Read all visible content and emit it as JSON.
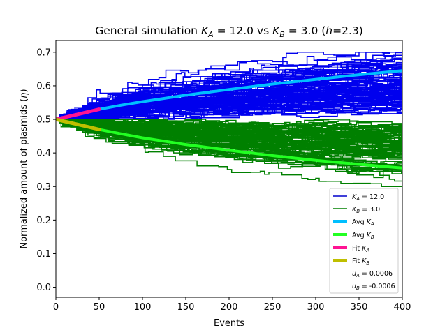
{
  "chart_data": {
    "type": "line",
    "title": {
      "prefix": "General simulation ",
      "ka_sym": "K",
      "ka_sub": "A",
      "ka_val": " = 12.0 vs ",
      "kb_sym": "K",
      "kb_sub": "B",
      "kb_val": " = 3.0 (",
      "h_sym": "h",
      "h_val": "=2.3)"
    },
    "xlabel": "Events",
    "ylabel": {
      "text": "Normalized amount of plasmids (",
      "sym": "η",
      "close": ")"
    },
    "xlim": [
      0,
      400
    ],
    "ylim": [
      -0.03,
      0.735
    ],
    "xticks": [
      "0",
      "50",
      "100",
      "150",
      "200",
      "250",
      "300",
      "350",
      "400"
    ],
    "yticks": [
      "0.0",
      "0.1",
      "0.2",
      "0.3",
      "0.4",
      "0.5",
      "0.6",
      "0.7"
    ],
    "grid": false,
    "legend_position": "lower-right",
    "simulations": {
      "A": {
        "color": "#0000ee",
        "start": 0.5,
        "upper": 0.7,
        "lower_bound": 0.5,
        "spread_max": 0.105
      },
      "B": {
        "color": "#008000",
        "start": 0.5,
        "upper": 0.5,
        "lower_bound": 0.3,
        "spread_max": 0.09
      }
    },
    "series": [
      {
        "id": "avg_a",
        "color": "#00bfff",
        "x": [
          0,
          25,
          50,
          75,
          100,
          150,
          200,
          250,
          300,
          350,
          400
        ],
        "y": [
          0.5,
          0.515,
          0.53,
          0.542,
          0.553,
          0.572,
          0.589,
          0.605,
          0.619,
          0.633,
          0.645
        ]
      },
      {
        "id": "avg_b",
        "color": "#22ff22",
        "x": [
          0,
          25,
          50,
          75,
          100,
          150,
          200,
          250,
          300,
          350,
          400
        ],
        "y": [
          0.5,
          0.485,
          0.47,
          0.457,
          0.445,
          0.425,
          0.408,
          0.392,
          0.378,
          0.366,
          0.355
        ]
      },
      {
        "id": "fit_a",
        "color": "#ff1493",
        "x": [
          0,
          10,
          20,
          30,
          40,
          50
        ],
        "y": [
          0.5,
          0.506,
          0.512,
          0.518,
          0.524,
          0.53
        ]
      },
      {
        "id": "fit_b",
        "color": "#bfbf00",
        "x": [
          0,
          10,
          20,
          30,
          40,
          50
        ],
        "y": [
          0.5,
          0.494,
          0.488,
          0.482,
          0.476,
          0.47
        ]
      }
    ],
    "legend": {
      "ka_line": {
        "sym": "K",
        "sub": "A",
        "val": " = 12.0",
        "color": "#0000cc"
      },
      "kb_line": {
        "sym": "K",
        "sub": "B",
        "val": " = 3.0",
        "color": "#008000"
      },
      "avg_a": {
        "prefix": "Avg ",
        "sym": "K",
        "sub": "A",
        "color": "#00bfff"
      },
      "avg_b": {
        "prefix": "Avg ",
        "sym": "K",
        "sub": "B",
        "color": "#22ff22"
      },
      "fit_a": {
        "prefix": "Fit ",
        "sym": "K",
        "sub": "A",
        "color": "#ff1493"
      },
      "fit_b": {
        "prefix": "Fit ",
        "sym": "K",
        "sub": "B",
        "color": "#bfbf00"
      },
      "ua": {
        "sym": "u",
        "sub": "A",
        "val": " = 0.0006"
      },
      "ub": {
        "sym": "u",
        "sub": "B",
        "val": " = -0.0006"
      }
    }
  }
}
